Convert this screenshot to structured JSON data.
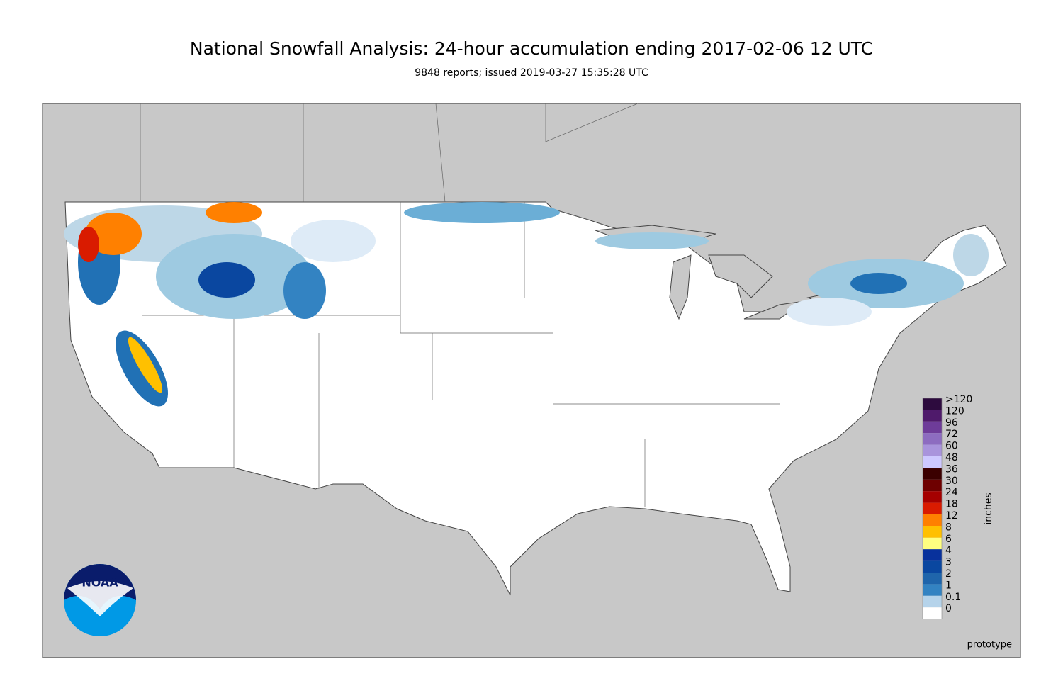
{
  "title": "National Snowfall Analysis: 24-hour accumulation ending 2017-02-06 12 UTC",
  "subtitle": "9848 reports; issued 2019-03-27 15:35:28 UTC",
  "legend": {
    "unit": "inches",
    "levels": [
      {
        "label": ">120",
        "color": "#2d0b3e"
      },
      {
        "label": "120",
        "color": "#4f1a6b"
      },
      {
        "label": "96",
        "color": "#6e3c99"
      },
      {
        "label": "72",
        "color": "#8d6cc0"
      },
      {
        "label": "60",
        "color": "#a994dc"
      },
      {
        "label": "48",
        "color": "#cdc8ff"
      },
      {
        "label": "36",
        "color": "#3b0000"
      },
      {
        "label": "30",
        "color": "#6e0000"
      },
      {
        "label": "24",
        "color": "#a50000"
      },
      {
        "label": "18",
        "color": "#d91b00"
      },
      {
        "label": "12",
        "color": "#ff8000"
      },
      {
        "label": "8",
        "color": "#ffc000"
      },
      {
        "label": "6",
        "color": "#ffff80"
      },
      {
        "label": "4",
        "color": "#08319c"
      },
      {
        "label": "3",
        "color": "#0a47a0"
      },
      {
        "label": "2",
        "color": "#1f65ab"
      },
      {
        "label": "1",
        "color": "#3383c2"
      },
      {
        "label": "0.1",
        "color": "#b5d3ea"
      },
      {
        "label": "0",
        "color": "#ffffff"
      }
    ]
  },
  "note": "prototype",
  "logo": "NOAA"
}
